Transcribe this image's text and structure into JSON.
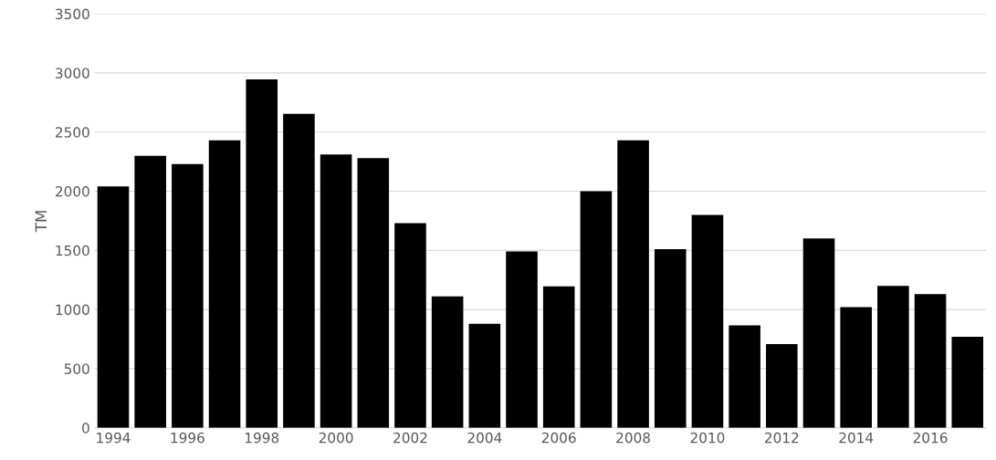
{
  "chart_data": {
    "type": "bar",
    "ylabel": "TM",
    "categories": [
      "1994",
      null,
      "1996",
      null,
      "1998",
      null,
      "2000",
      null,
      "2002",
      null,
      "2004",
      null,
      "2006",
      null,
      "2008",
      null,
      "2010",
      null,
      "2012",
      null,
      "2014",
      null,
      "2016",
      null
    ],
    "values": [
      2040,
      2300,
      2230,
      2430,
      2945,
      2655,
      2310,
      2280,
      1730,
      1110,
      880,
      1490,
      1195,
      2000,
      2430,
      1510,
      1800,
      865,
      707,
      1600,
      1020,
      1200,
      1131,
      770
    ],
    "color": "#000000",
    "ylim": [
      0,
      3500
    ],
    "yticks": [
      0,
      500,
      1000,
      1500,
      2000,
      2500,
      3000,
      3500
    ],
    "grid": "y",
    "legend": false
  }
}
